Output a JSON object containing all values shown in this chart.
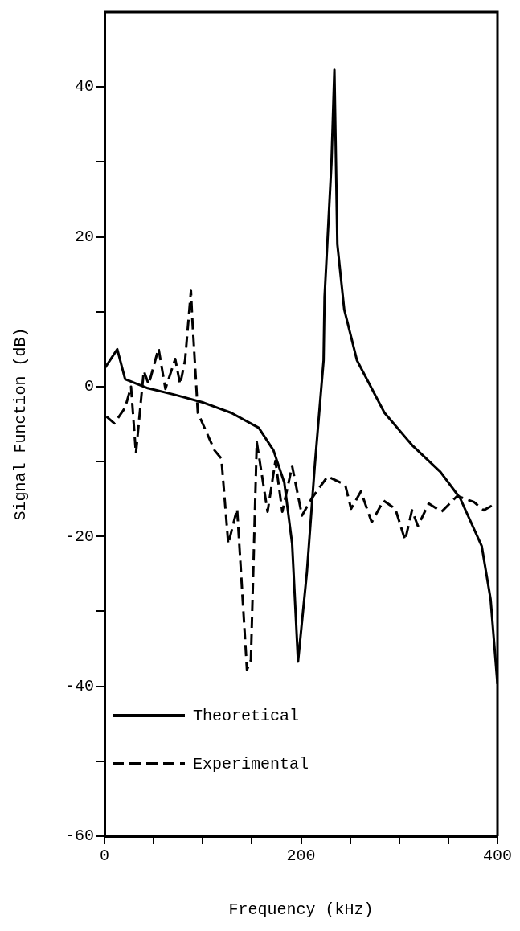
{
  "chart_data": {
    "type": "line",
    "xlabel": "Frequency (kHz)",
    "ylabel": "Signal Function (dB)",
    "xlim": [
      0,
      400
    ],
    "xticks": [
      0,
      {
        "value": 50,
        "label": null
      },
      {
        "value": 100,
        "label": null
      },
      {
        "value": 150,
        "label": null
      },
      200,
      {
        "value": 250,
        "label": null
      },
      {
        "value": 300,
        "label": null
      },
      {
        "value": 350,
        "label": null
      },
      400
    ],
    "ylim": [
      -60,
      50
    ],
    "yticks": [
      -60,
      {
        "value": -50,
        "label": null
      },
      -40,
      {
        "value": -30,
        "label": null
      },
      -20,
      {
        "value": -10,
        "label": null
      },
      0,
      {
        "value": 10,
        "label": null
      },
      20,
      {
        "value": 30,
        "label": null
      },
      40
    ],
    "legend": "bottom left",
    "marker": "none",
    "grid": false,
    "series": [
      {
        "name": "Theoretical",
        "color": "#000000",
        "line_style": "solid",
        "x": [
          0,
          13,
          21,
          44,
          72,
          100,
          129,
          157,
          172,
          183,
          191,
          197,
          206,
          214,
          223,
          224,
          231,
          234,
          237,
          244,
          257,
          285,
          313,
          342,
          362,
          384,
          393,
          400
        ],
        "values": [
          2.4,
          5,
          1,
          -0.2,
          -1.1,
          -2.1,
          -3.5,
          -5.5,
          -8.5,
          -12.8,
          -21,
          -36.7,
          -24.8,
          -10.6,
          3.5,
          12,
          29.8,
          42.3,
          19,
          10.3,
          3.5,
          -3.5,
          -7.8,
          -11.4,
          -14.9,
          -21.3,
          -28.4,
          -39.7
        ]
      },
      {
        "name": "Experimental",
        "color": "#000000",
        "line_style": "dashed",
        "x": [
          2,
          10,
          21,
          27,
          32,
          40,
          45,
          55,
          62,
          72,
          77,
          82,
          88,
          89,
          95,
          112,
          119,
          126,
          135,
          145,
          149,
          155,
          166,
          174,
          181,
          191,
          201,
          211,
          227,
          245,
          251,
          261,
          272,
          284,
          296,
          306,
          313,
          319,
          330,
          343,
          359,
          376,
          386,
          398
        ],
        "values": [
          -4,
          -4.9,
          -2.8,
          0,
          -8.9,
          2.1,
          0.3,
          5.1,
          -0.3,
          3.7,
          0.3,
          3.5,
          12.8,
          9.9,
          -3.5,
          -8.5,
          -9.6,
          -21,
          -16.3,
          -37.8,
          -36.5,
          -7.4,
          -16.7,
          -9.9,
          -16.7,
          -10.6,
          -17.2,
          -14.9,
          -12,
          -13.1,
          -16.3,
          -14,
          -18.1,
          -15.2,
          -16.3,
          -20.5,
          -16.5,
          -18.6,
          -15.6,
          -16.7,
          -14.6,
          -15.4,
          -16.5,
          -15.6
        ]
      }
    ]
  }
}
